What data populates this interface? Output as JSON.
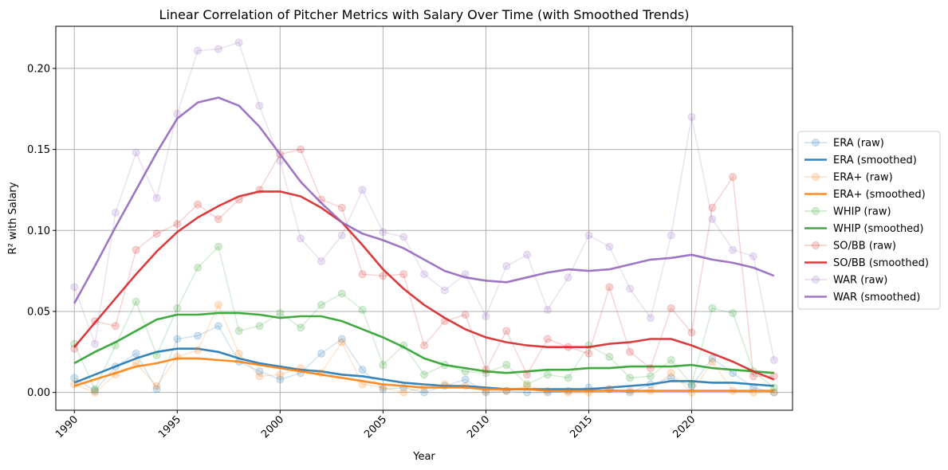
{
  "chart_data": {
    "type": "line",
    "title": "Linear Correlation of Pitcher Metrics with Salary Over Time (with Smoothed Trends)",
    "xlabel": "Year",
    "ylabel": "R² with Salary",
    "xlim": [
      1989.1,
      2024.9
    ],
    "ylim": [
      -0.011,
      0.226
    ],
    "xticks": [
      1990,
      1995,
      2000,
      2005,
      2010,
      2015,
      2020
    ],
    "yticks": [
      0.0,
      0.05,
      0.1,
      0.15,
      0.2
    ],
    "ytick_labels": [
      "0.00",
      "0.05",
      "0.10",
      "0.15",
      "0.20"
    ],
    "grid": true,
    "legend_position": "center-right-outside",
    "x": [
      1990,
      1991,
      1992,
      1993,
      1994,
      1995,
      1996,
      1997,
      1998,
      1999,
      2000,
      2001,
      2002,
      2003,
      2004,
      2005,
      2006,
      2007,
      2008,
      2009,
      2010,
      2011,
      2012,
      2013,
      2014,
      2015,
      2016,
      2017,
      2018,
      2019,
      2020,
      2021,
      2022,
      2023,
      2024
    ],
    "series": [
      {
        "name": "ERA (raw)",
        "kind": "raw",
        "color": "#1f77b4",
        "values": [
          0.009,
          0.001,
          0.016,
          0.024,
          0.002,
          0.033,
          0.035,
          0.041,
          0.019,
          0.013,
          0.008,
          0.012,
          0.024,
          0.033,
          0.014,
          0.002,
          0.003,
          0.0,
          0.004,
          0.008,
          0.0,
          0.001,
          0.0,
          0.0,
          0.001,
          0.003,
          0.002,
          0.0,
          0.005,
          0.009,
          0.004,
          0.021,
          0.012,
          0.003,
          0.0
        ]
      },
      {
        "name": "ERA (smoothed)",
        "kind": "smooth",
        "color": "#1f77b4",
        "values": [
          0.006,
          0.011,
          0.016,
          0.021,
          0.025,
          0.027,
          0.027,
          0.025,
          0.021,
          0.018,
          0.016,
          0.014,
          0.013,
          0.011,
          0.01,
          0.008,
          0.006,
          0.005,
          0.004,
          0.004,
          0.003,
          0.002,
          0.002,
          0.002,
          0.002,
          0.002,
          0.003,
          0.004,
          0.005,
          0.007,
          0.007,
          0.006,
          0.006,
          0.005,
          0.004
        ]
      },
      {
        "name": "ERA+ (raw)",
        "kind": "raw",
        "color": "#ff7f0e",
        "values": [
          0.005,
          0.0,
          0.011,
          0.018,
          0.004,
          0.022,
          0.026,
          0.054,
          0.024,
          0.01,
          0.011,
          0.015,
          0.012,
          0.031,
          0.005,
          0.003,
          0.0,
          0.003,
          0.005,
          0.004,
          0.001,
          0.001,
          0.004,
          0.001,
          0.0,
          0.0,
          0.002,
          0.001,
          0.001,
          0.012,
          0.0,
          0.019,
          0.001,
          0.0,
          0.0
        ]
      },
      {
        "name": "ERA+ (smoothed)",
        "kind": "smooth",
        "color": "#ff7f0e",
        "values": [
          0.004,
          0.008,
          0.012,
          0.016,
          0.018,
          0.021,
          0.021,
          0.02,
          0.019,
          0.017,
          0.015,
          0.013,
          0.011,
          0.009,
          0.007,
          0.005,
          0.004,
          0.003,
          0.003,
          0.003,
          0.002,
          0.002,
          0.002,
          0.001,
          0.001,
          0.001,
          0.001,
          0.001,
          0.001,
          0.001,
          0.001,
          0.001,
          0.001,
          0.001,
          0.001
        ]
      },
      {
        "name": "WHIP (raw)",
        "kind": "raw",
        "color": "#2ca02c",
        "values": [
          0.03,
          0.002,
          0.029,
          0.056,
          0.023,
          0.052,
          0.077,
          0.09,
          0.038,
          0.041,
          0.049,
          0.04,
          0.054,
          0.061,
          0.051,
          0.017,
          0.029,
          0.011,
          0.017,
          0.013,
          0.012,
          0.017,
          0.005,
          0.011,
          0.009,
          0.029,
          0.022,
          0.009,
          0.01,
          0.02,
          0.005,
          0.052,
          0.049,
          0.013,
          0.003
        ]
      },
      {
        "name": "WHIP (smoothed)",
        "kind": "smooth",
        "color": "#2ca02c",
        "values": [
          0.018,
          0.025,
          0.031,
          0.038,
          0.045,
          0.048,
          0.048,
          0.049,
          0.049,
          0.048,
          0.046,
          0.047,
          0.047,
          0.044,
          0.039,
          0.034,
          0.028,
          0.021,
          0.017,
          0.015,
          0.013,
          0.012,
          0.013,
          0.014,
          0.014,
          0.015,
          0.015,
          0.016,
          0.016,
          0.016,
          0.017,
          0.015,
          0.014,
          0.013,
          0.012
        ]
      },
      {
        "name": "SO/BB (raw)",
        "kind": "raw",
        "color": "#d62728",
        "values": [
          0.027,
          0.044,
          0.041,
          0.088,
          0.098,
          0.104,
          0.116,
          0.107,
          0.119,
          0.125,
          0.147,
          0.15,
          0.119,
          0.114,
          0.073,
          0.072,
          0.073,
          0.029,
          0.044,
          0.048,
          0.014,
          0.038,
          0.011,
          0.033,
          0.028,
          0.024,
          0.065,
          0.025,
          0.015,
          0.052,
          0.037,
          0.114,
          0.133,
          0.01,
          0.01
        ]
      },
      {
        "name": "SO/BB (smoothed)",
        "kind": "smooth",
        "color": "#d62728",
        "values": [
          0.028,
          0.043,
          0.058,
          0.073,
          0.087,
          0.099,
          0.108,
          0.115,
          0.121,
          0.124,
          0.124,
          0.121,
          0.114,
          0.105,
          0.091,
          0.076,
          0.064,
          0.054,
          0.046,
          0.039,
          0.034,
          0.031,
          0.029,
          0.028,
          0.028,
          0.028,
          0.03,
          0.031,
          0.033,
          0.033,
          0.029,
          0.024,
          0.019,
          0.013,
          0.008
        ]
      },
      {
        "name": "WAR (raw)",
        "kind": "raw",
        "color": "#9467bd",
        "values": [
          0.065,
          0.03,
          0.111,
          0.148,
          0.12,
          0.172,
          0.211,
          0.212,
          0.216,
          0.177,
          0.143,
          0.095,
          0.081,
          0.097,
          0.125,
          0.099,
          0.096,
          0.073,
          0.063,
          0.073,
          0.047,
          0.078,
          0.085,
          0.051,
          0.071,
          0.097,
          0.09,
          0.064,
          0.046,
          0.097,
          0.17,
          0.107,
          0.088,
          0.084,
          0.02
        ]
      },
      {
        "name": "WAR (smoothed)",
        "kind": "smooth",
        "color": "#9467bd",
        "values": [
          0.055,
          0.078,
          0.102,
          0.125,
          0.148,
          0.169,
          0.179,
          0.182,
          0.177,
          0.164,
          0.147,
          0.13,
          0.117,
          0.105,
          0.098,
          0.094,
          0.089,
          0.082,
          0.075,
          0.071,
          0.069,
          0.068,
          0.071,
          0.074,
          0.076,
          0.075,
          0.076,
          0.079,
          0.082,
          0.083,
          0.085,
          0.082,
          0.08,
          0.077,
          0.072
        ]
      }
    ]
  }
}
